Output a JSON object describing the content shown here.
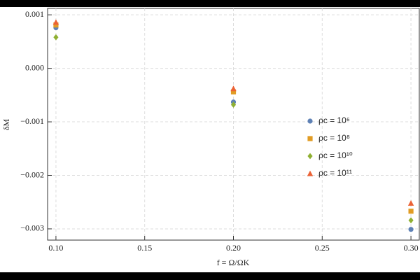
{
  "chart_data": {
    "type": "scatter",
    "xlabel": "f = Ω/ΩK",
    "ylabel": "δM",
    "x": [
      0.1,
      0.2,
      0.3
    ],
    "series": [
      {
        "name": "ρc = 10⁶",
        "color": "#5e81b5",
        "marker": "circle",
        "values": [
          0.00076,
          -0.00063,
          -0.00301
        ]
      },
      {
        "name": "ρc = 10⁸",
        "color": "#e19c24",
        "marker": "square",
        "values": [
          0.00081,
          -0.00044,
          -0.00267
        ]
      },
      {
        "name": "ρc = 10¹⁰",
        "color": "#8fb032",
        "marker": "diamond",
        "values": [
          0.00058,
          -0.00068,
          -0.00284
        ]
      },
      {
        "name": "ρc = 10¹¹",
        "color": "#eb6235",
        "marker": "triangle",
        "values": [
          0.00086,
          -0.00038,
          -0.00252
        ]
      }
    ],
    "xlim": [
      0.0953,
      0.3047
    ],
    "ylim": [
      -0.00321,
      0.00112
    ],
    "xticks": [
      {
        "value": 0.1,
        "label": "0.10"
      },
      {
        "value": 0.15,
        "label": "0.15"
      },
      {
        "value": 0.2,
        "label": "0.20"
      },
      {
        "value": 0.25,
        "label": "0.25"
      },
      {
        "value": 0.3,
        "label": "0.30"
      }
    ],
    "yticks": [
      {
        "value": 0.001,
        "label": "0.001"
      },
      {
        "value": 0,
        "label": "0.000"
      },
      {
        "value": -0.001,
        "label": "−0.001"
      },
      {
        "value": -0.002,
        "label": "−0.002"
      },
      {
        "value": -0.003,
        "label": "−0.003"
      }
    ],
    "grid": true,
    "legend": "right"
  }
}
